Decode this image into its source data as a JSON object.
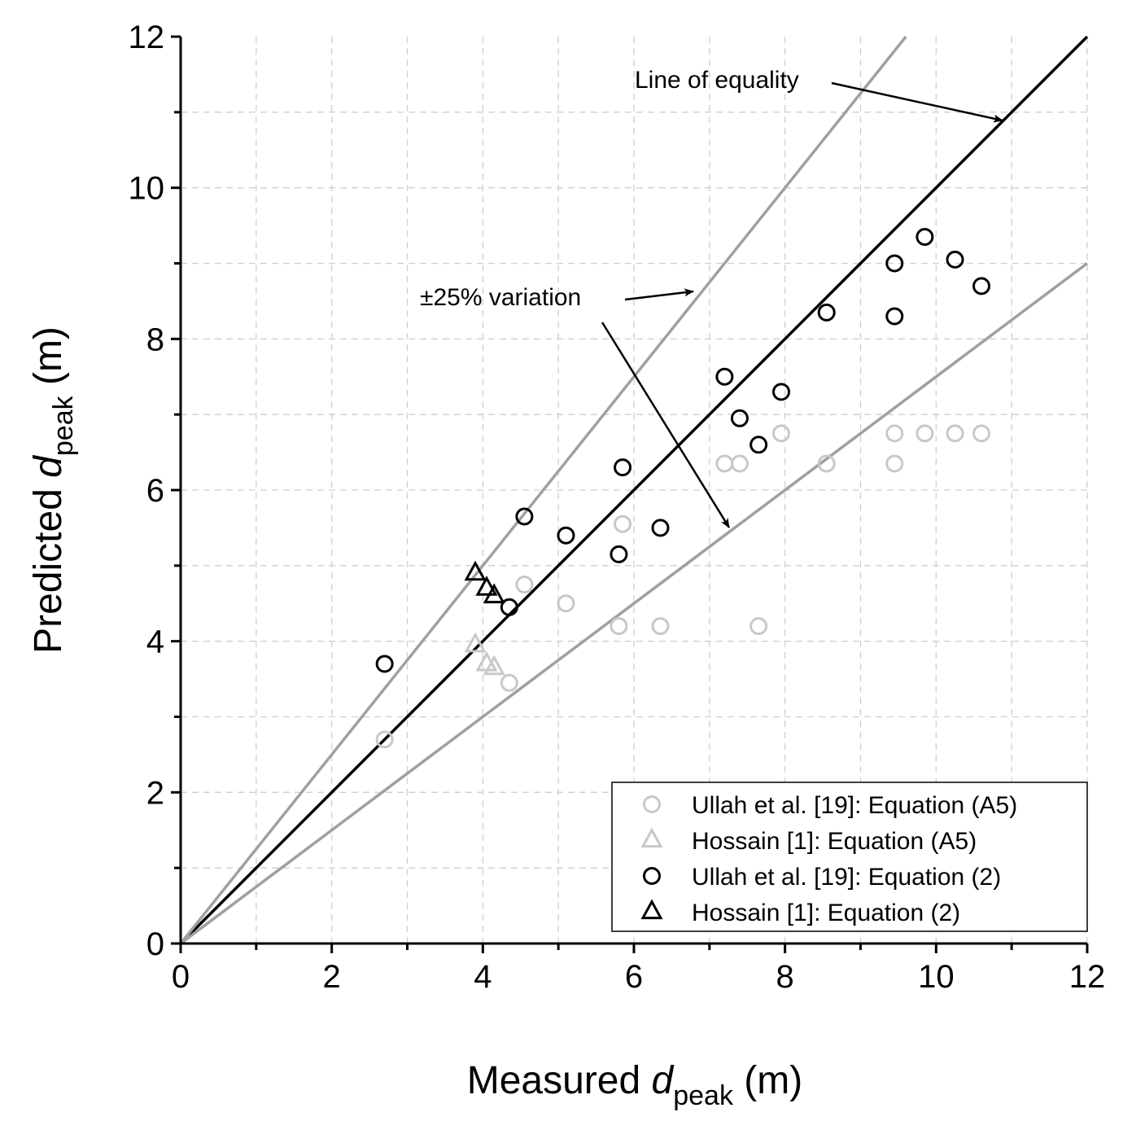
{
  "chart_data": {
    "type": "scatter",
    "xlabel": {
      "prefix": "Measured ",
      "italic": "d",
      "sub": "peak",
      "suffix": " (m)"
    },
    "ylabel": {
      "prefix": "Predicted ",
      "italic": "d",
      "sub": "peak",
      "suffix": " (m)"
    },
    "xlim": [
      0,
      12
    ],
    "ylim": [
      0,
      12
    ],
    "major_ticks": [
      0,
      2,
      4,
      6,
      8,
      10,
      12
    ],
    "major_tick_labels": [
      "0",
      "2",
      "4",
      "6",
      "8",
      "10",
      "12"
    ],
    "minor_ticks": [
      1,
      3,
      5,
      7,
      9,
      11
    ],
    "grid": true,
    "legend_position": "bottom-right",
    "reference_lines": [
      {
        "name": "equality",
        "slope": 1.0,
        "color": "#000000"
      },
      {
        "name": "plus-25",
        "slope": 1.25,
        "color": "#a0a0a0"
      },
      {
        "name": "minus-25",
        "slope": 0.75,
        "color": "#a0a0a0"
      }
    ],
    "annotations": {
      "equality": "Line of equality",
      "variation": "±25% variation"
    },
    "series": [
      {
        "name": "Ullah et al. [19]: Equation (A5)",
        "marker": "circle",
        "color": "#c8c8c8",
        "points": [
          [
            2.7,
            2.7
          ],
          [
            4.35,
            3.45
          ],
          [
            4.55,
            4.75
          ],
          [
            5.1,
            4.5
          ],
          [
            5.8,
            4.2
          ],
          [
            5.85,
            5.55
          ],
          [
            6.35,
            4.2
          ],
          [
            7.2,
            6.35
          ],
          [
            7.4,
            6.35
          ],
          [
            7.65,
            4.2
          ],
          [
            7.95,
            6.75
          ],
          [
            8.55,
            6.35
          ],
          [
            9.45,
            6.35
          ],
          [
            9.45,
            6.75
          ],
          [
            9.85,
            6.75
          ],
          [
            10.25,
            6.75
          ],
          [
            10.6,
            6.75
          ]
        ]
      },
      {
        "name": "Hossain [1]: Equation (A5)",
        "marker": "triangle",
        "color": "#c8c8c8",
        "points": [
          [
            3.9,
            3.95
          ],
          [
            4.05,
            3.7
          ],
          [
            4.15,
            3.65
          ]
        ]
      },
      {
        "name": "Ullah et al. [19]: Equation (2)",
        "marker": "circle",
        "color": "#000000",
        "points": [
          [
            2.7,
            3.7
          ],
          [
            4.35,
            4.45
          ],
          [
            4.55,
            5.65
          ],
          [
            5.1,
            5.4
          ],
          [
            5.8,
            5.15
          ],
          [
            5.85,
            6.3
          ],
          [
            6.35,
            5.5
          ],
          [
            7.2,
            7.5
          ],
          [
            7.4,
            6.95
          ],
          [
            7.65,
            6.6
          ],
          [
            7.95,
            7.3
          ],
          [
            8.55,
            8.35
          ],
          [
            9.45,
            8.3
          ],
          [
            9.45,
            9.0
          ],
          [
            9.85,
            9.35
          ],
          [
            10.25,
            9.05
          ],
          [
            10.6,
            8.7
          ]
        ]
      },
      {
        "name": "Hossain [1]: Equation (2)",
        "marker": "triangle",
        "color": "#000000",
        "points": [
          [
            3.9,
            4.9
          ],
          [
            4.05,
            4.7
          ],
          [
            4.15,
            4.6
          ]
        ]
      }
    ]
  }
}
